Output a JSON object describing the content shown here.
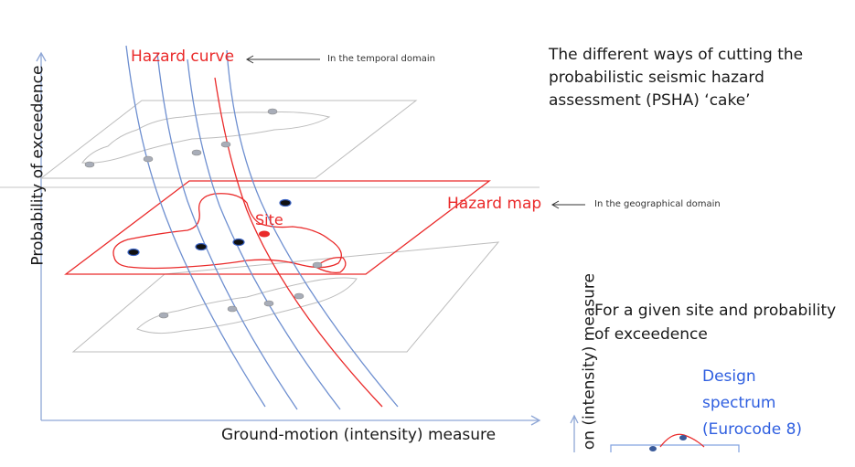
{
  "labels": {
    "hazard_curve": "Hazard curve",
    "temporal_note": "In the temporal domain",
    "hazard_map": "Hazard map",
    "geo_note": "In the geographical domain",
    "site": "Site",
    "title": "The different ways of cutting the probabilistic seismic hazard assessment (PSHA) ‘cake’",
    "given_site": "For a given site and probability of exceedence",
    "design_spectrum": "Design spectrum (Eurocode 8)",
    "x_axis": "Ground-motion (intensity) measure",
    "y_axis": "Probability of exceedence",
    "y_axis_inset": "on (intensity) measure"
  },
  "colors": {
    "curve_blue": "#6e8fd0",
    "hazard_red": "#ea2a2a",
    "plane_gray": "#b8b8b8",
    "design_blue": "#2f5fe0"
  }
}
